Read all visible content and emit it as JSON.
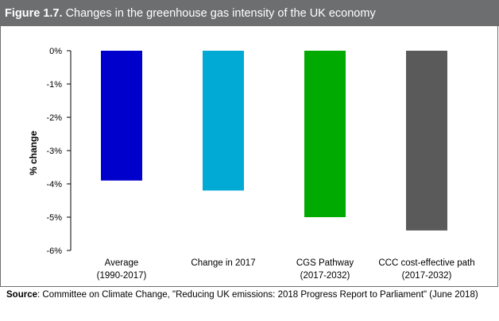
{
  "figure": {
    "number": "Figure 1.7.",
    "title": "Changes in the greenhouse gas intensity of the UK economy"
  },
  "chart_data": {
    "type": "bar",
    "categories": [
      [
        "Average",
        "(1990-2017)"
      ],
      [
        "Change in 2017"
      ],
      [
        "CGS Pathway",
        "(2017-2032)"
      ],
      [
        "CCC cost-effective path",
        "(2017-2032)"
      ]
    ],
    "values": [
      -3.9,
      -4.2,
      -5.0,
      -5.4
    ],
    "colors": [
      "#0000cc",
      "#00aad4",
      "#00aa00",
      "#5a5a5a"
    ],
    "ylabel": "% change",
    "ylim": [
      -6,
      0
    ],
    "yticks": [
      0,
      -1,
      -2,
      -3,
      -4,
      -5,
      -6
    ],
    "ytick_labels": [
      "0%",
      "-1%",
      "-2%",
      "-3%",
      "-4%",
      "-5%",
      "-6%"
    ],
    "grid": false,
    "legend": "none"
  },
  "source": {
    "label": "Source",
    "text": ": Committee on Climate Change, \"Reducing UK emissions: 2018 Progress Report to Parliament\" (June 2018)"
  }
}
